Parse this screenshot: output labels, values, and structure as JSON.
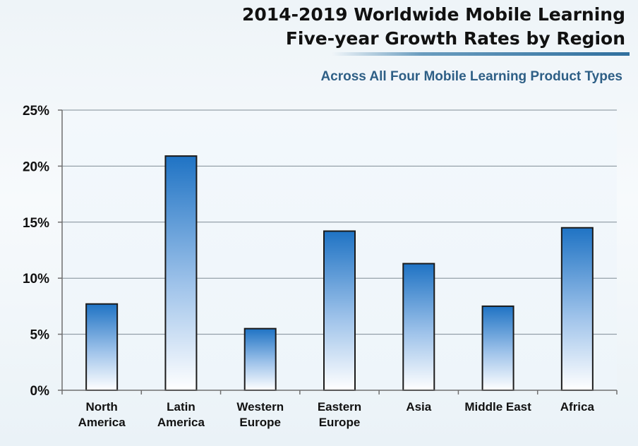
{
  "header": {
    "title_line_1": "2014-2019 Worldwide Mobile Learning",
    "title_line_2": "Five-year Growth Rates by Region",
    "subtitle": "Across All Four Mobile Learning Product Types"
  },
  "colors": {
    "bar_top": "#1f73c4",
    "bar_bottom": "#ffffff",
    "gridline": "#7f8c95",
    "axis": "#6f6f6f",
    "label_text": "#111111",
    "subtitle_text": "#2e5f86"
  },
  "chart_data": {
    "type": "bar",
    "title": "2014-2019 Worldwide Mobile Learning Five-year Growth Rates by Region",
    "subtitle": "Across All Four Mobile Learning Product Types",
    "categories": [
      [
        "North",
        "America"
      ],
      [
        "Latin",
        "America"
      ],
      [
        "Western",
        "Europe"
      ],
      [
        "Eastern",
        "Europe"
      ],
      [
        "Asia"
      ],
      [
        "Middle East"
      ],
      [
        "Africa"
      ]
    ],
    "values": [
      7.7,
      20.9,
      5.5,
      14.2,
      11.3,
      7.5,
      14.5
    ],
    "value_unit": "%",
    "ylim": [
      0,
      25
    ],
    "yticks": [
      0,
      5,
      10,
      15,
      20,
      25
    ],
    "ytick_labels": [
      "0%",
      "5%",
      "10%",
      "15%",
      "20%",
      "25%"
    ],
    "xlabel": "",
    "ylabel": "",
    "grid": true,
    "legend": "none"
  }
}
